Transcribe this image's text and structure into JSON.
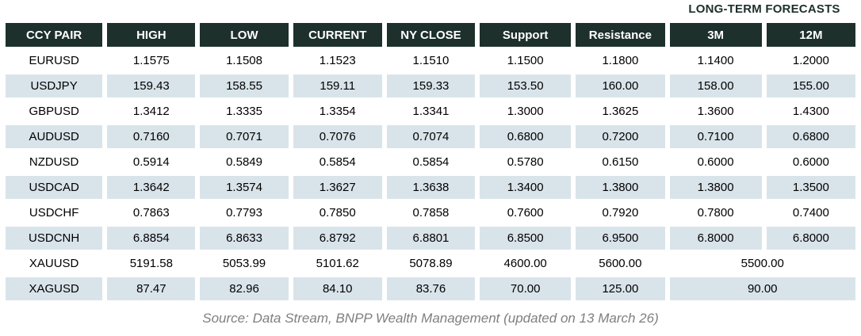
{
  "title": "LONG-TERM FORECASTS",
  "footer": {
    "source": "Source: Data Stream, BNPP Wealth Management (updated on 13 March 26)"
  },
  "colors": {
    "header_bg": "#1d302c",
    "header_text": "#ffffff",
    "row_alt_bg": "#d9e4ea",
    "row_bg": "#ffffff",
    "title_text": "#1d302c",
    "source_text": "#7f7f7f"
  },
  "table": {
    "columns": [
      "CCY PAIR",
      "HIGH",
      "LOW",
      "CURRENT",
      "NY CLOSE",
      "Support",
      "Resistance",
      "3M",
      "12M"
    ],
    "rows": [
      {
        "pair": "EURUSD",
        "high": "1.1575",
        "low": "1.1508",
        "current": "1.1523",
        "ny_close": "1.1510",
        "support": "1.1500",
        "resistance": "1.1800",
        "m3": "1.1400",
        "m12": "1.2000"
      },
      {
        "pair": "USDJPY",
        "high": "159.43",
        "low": "158.55",
        "current": "159.11",
        "ny_close": "159.33",
        "support": "153.50",
        "resistance": "160.00",
        "m3": "158.00",
        "m12": "155.00"
      },
      {
        "pair": "GBPUSD",
        "high": "1.3412",
        "low": "1.3335",
        "current": "1.3354",
        "ny_close": "1.3341",
        "support": "1.3000",
        "resistance": "1.3625",
        "m3": "1.3600",
        "m12": "1.4300"
      },
      {
        "pair": "AUDUSD",
        "high": "0.7160",
        "low": "0.7071",
        "current": "0.7076",
        "ny_close": "0.7074",
        "support": "0.6800",
        "resistance": "0.7200",
        "m3": "0.7100",
        "m12": "0.6800"
      },
      {
        "pair": "NZDUSD",
        "high": "0.5914",
        "low": "0.5849",
        "current": "0.5854",
        "ny_close": "0.5854",
        "support": "0.5780",
        "resistance": "0.6150",
        "m3": "0.6000",
        "m12": "0.6000"
      },
      {
        "pair": "USDCAD",
        "high": "1.3642",
        "low": "1.3574",
        "current": "1.3627",
        "ny_close": "1.3638",
        "support": "1.3400",
        "resistance": "1.3800",
        "m3": "1.3800",
        "m12": "1.3500"
      },
      {
        "pair": "USDCHF",
        "high": "0.7863",
        "low": "0.7793",
        "current": "0.7850",
        "ny_close": "0.7858",
        "support": "0.7600",
        "resistance": "0.7920",
        "m3": "0.7800",
        "m12": "0.7400"
      },
      {
        "pair": "USDCNH",
        "high": "6.8854",
        "low": "6.8633",
        "current": "6.8792",
        "ny_close": "6.8801",
        "support": "6.8500",
        "resistance": "6.9500",
        "m3": "6.8000",
        "m12": "6.8000"
      },
      {
        "pair": "XAUUSD",
        "high": "5191.58",
        "low": "5053.99",
        "current": "5101.62",
        "ny_close": "5078.89",
        "support": "4600.00",
        "resistance": "5600.00",
        "m3_12": "5500.00"
      },
      {
        "pair": "XAGUSD",
        "high": "87.47",
        "low": "82.96",
        "current": "84.10",
        "ny_close": "83.76",
        "support": "70.00",
        "resistance": "125.00",
        "m3_12": "90.00"
      }
    ]
  },
  "chart_data": {
    "type": "table",
    "title": "LONG-TERM FORECASTS",
    "columns": [
      "CCY PAIR",
      "HIGH",
      "LOW",
      "CURRENT",
      "NY CLOSE",
      "Support",
      "Resistance",
      "3M",
      "12M"
    ],
    "rows": [
      [
        "EURUSD",
        1.1575,
        1.1508,
        1.1523,
        1.151,
        1.15,
        1.18,
        1.14,
        1.2
      ],
      [
        "USDJPY",
        159.43,
        158.55,
        159.11,
        159.33,
        153.5,
        160.0,
        158.0,
        155.0
      ],
      [
        "GBPUSD",
        1.3412,
        1.3335,
        1.3354,
        1.3341,
        1.3,
        1.3625,
        1.36,
        1.43
      ],
      [
        "AUDUSD",
        0.716,
        0.7071,
        0.7076,
        0.7074,
        0.68,
        0.72,
        0.71,
        0.68
      ],
      [
        "NZDUSD",
        0.5914,
        0.5849,
        0.5854,
        0.5854,
        0.578,
        0.615,
        0.6,
        0.6
      ],
      [
        "USDCAD",
        1.3642,
        1.3574,
        1.3627,
        1.3638,
        1.34,
        1.38,
        1.38,
        1.35
      ],
      [
        "USDCHF",
        0.7863,
        0.7793,
        0.785,
        0.7858,
        0.76,
        0.792,
        0.78,
        0.74
      ],
      [
        "USDCNH",
        6.8854,
        6.8633,
        6.8792,
        6.8801,
        6.85,
        6.95,
        6.8,
        6.8
      ],
      [
        "XAUUSD",
        5191.58,
        5053.99,
        5101.62,
        5078.89,
        4600.0,
        5600.0,
        5500.0,
        5500.0
      ],
      [
        "XAGUSD",
        87.47,
        82.96,
        84.1,
        83.76,
        70.0,
        125.0,
        90.0,
        90.0
      ]
    ],
    "notes": "XAUUSD and XAGUSD have a single merged forecast cell spanning the 3M and 12M columns (5500.00 and 90.00 respectively).",
    "annotations": [
      "Source: Data Stream, BNPP Wealth Management (updated on 13 March 26)"
    ]
  }
}
